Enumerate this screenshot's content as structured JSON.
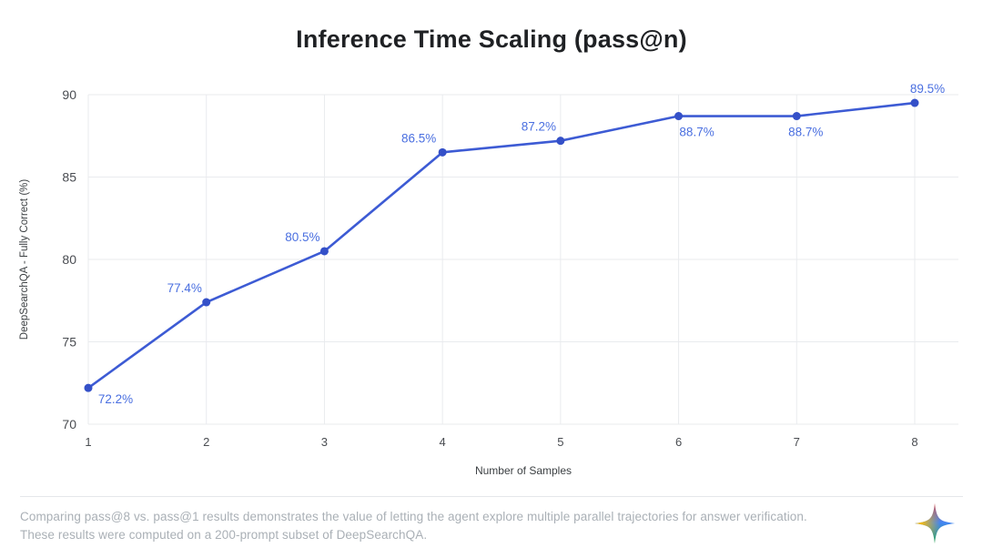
{
  "page": {
    "background": "#ffffff"
  },
  "chart_data": {
    "type": "line",
    "title": "Inference Time Scaling (pass@n)",
    "xlabel": "Number of Samples",
    "ylabel": "DeepSearchQA - Fully Correct (%)",
    "x": [
      1,
      2,
      3,
      4,
      5,
      6,
      7,
      8
    ],
    "values": [
      72.2,
      77.4,
      80.5,
      86.5,
      87.2,
      88.7,
      88.7,
      89.5
    ],
    "point_labels": [
      "72.2%",
      "77.4%",
      "80.5%",
      "86.5%",
      "87.2%",
      "88.7%",
      "88.7%",
      "89.5%"
    ],
    "xticks": [
      "1",
      "2",
      "3",
      "4",
      "5",
      "6",
      "7",
      "8"
    ],
    "yticks": [
      70,
      75,
      80,
      85,
      90
    ],
    "ylim": [
      70,
      90
    ],
    "xlim": [
      1,
      8
    ],
    "grid": true,
    "legend": "none",
    "colors": {
      "line": "#3d5bd4",
      "point": "#3450c8",
      "point_label": "#4a6fe0",
      "grid": "#e9ebee",
      "tick_label": "#4a4d52",
      "axis_title": "#3c4043",
      "title": "#1f2124"
    }
  },
  "footer": {
    "line1": "Comparing pass@8 vs. pass@1 results demonstrates the value of letting the agent explore multiple parallel trajectories for answer verification.",
    "line2": "These results were computed on a 200-prompt subset of DeepSearchQA.",
    "icon": "gemini-sparkle-icon",
    "icon_colors": {
      "top": "#d4564e",
      "left": "#fbbc05",
      "center": "#4285f4",
      "bottom": "#34a853"
    }
  }
}
